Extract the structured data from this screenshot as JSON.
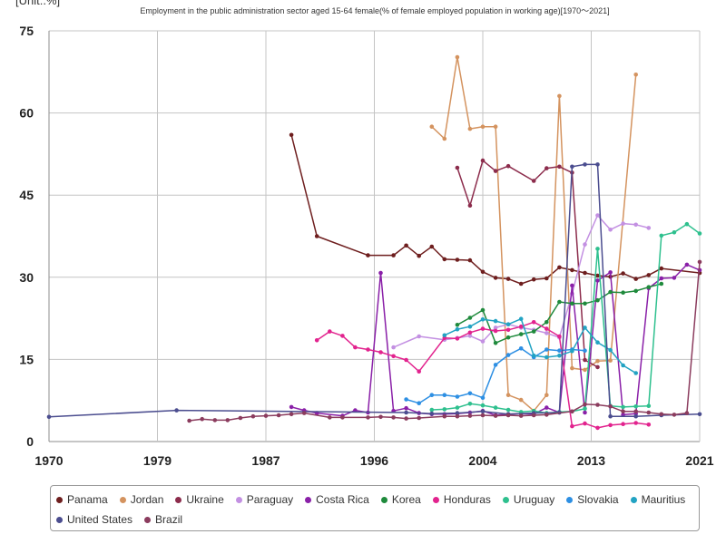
{
  "chart_data": {
    "type": "line",
    "title": "Employment in the public administration sector aged 15-64 female(% of female employed population in working age)[1970～2021]",
    "unit_label": "[Unit:.%]",
    "xlim": [
      1970,
      2021
    ],
    "ylim": [
      0,
      75
    ],
    "x_ticks": [
      "1970",
      "1979",
      "1987",
      "1996",
      "2004",
      "2013",
      "2021"
    ],
    "y_ticks": [
      "0",
      "15",
      "30",
      "45",
      "60",
      "75"
    ],
    "grid": true,
    "legend_position": "bottom",
    "series": [
      {
        "name": "Panama",
        "color": "#6e1e1e",
        "x": [
          1989,
          1991,
          1995,
          1997,
          1998,
          1999,
          2000,
          2001,
          2002,
          2003,
          2004,
          2005,
          2006,
          2007,
          2008,
          2009,
          2010,
          2011,
          2012,
          2013,
          2014,
          2015,
          2016,
          2017,
          2018,
          2021
        ],
        "y": [
          56.0,
          37.5,
          34.0,
          34.0,
          35.8,
          33.9,
          35.6,
          33.3,
          33.2,
          33.1,
          31.0,
          29.9,
          29.7,
          28.8,
          29.6,
          29.8,
          31.8,
          31.3,
          30.8,
          30.3,
          30.1,
          30.7,
          29.7,
          30.4,
          31.6,
          30.8
        ]
      },
      {
        "name": "Jordan",
        "color": "#d4935f",
        "x": [
          2000,
          2001,
          2002,
          2003,
          2004,
          2005,
          2006,
          2007,
          2008,
          2009,
          2010,
          2011,
          2012,
          2013,
          2014,
          2016
        ],
        "y": [
          57.5,
          55.3,
          70.2,
          57.1,
          57.5,
          57.5,
          8.5,
          7.6,
          5.6,
          8.5,
          63.1,
          13.4,
          13.1,
          14.7,
          14.8,
          67.0
        ]
      },
      {
        "name": "Ukraine",
        "color": "#8c2c4c",
        "x": [
          2002,
          2003,
          2004,
          2005,
          2006,
          2008,
          2009,
          2010,
          2011,
          2012,
          2013
        ],
        "y": [
          50.0,
          43.1,
          51.3,
          49.4,
          50.3,
          47.6,
          49.9,
          50.2,
          49.1,
          14.9,
          13.6
        ]
      },
      {
        "name": "Paraguay",
        "color": "#c390e2",
        "x": [
          1997,
          1999,
          2001,
          2002,
          2003,
          2004,
          2005,
          2006,
          2007,
          2008,
          2009,
          2010,
          2011,
          2012,
          2013,
          2014,
          2015,
          2016,
          2017
        ],
        "y": [
          17.2,
          19.2,
          18.6,
          18.9,
          19.3,
          18.3,
          20.8,
          21.4,
          20.8,
          20.4,
          19.8,
          19.0,
          27.0,
          36.0,
          41.3,
          38.7,
          39.8,
          39.6,
          39.0
        ]
      },
      {
        "name": "Costa Rica",
        "color": "#8a20a8",
        "x": [
          1989,
          1990,
          1991,
          1993,
          1994,
          1995,
          1996,
          1997,
          1998,
          1999,
          2000,
          2001,
          2002,
          2003,
          2004,
          2005,
          2006,
          2007,
          2008,
          2009,
          2010,
          2011,
          2012,
          2013,
          2014,
          2015,
          2016,
          2017,
          2018,
          2019,
          2020,
          2021
        ],
        "y": [
          6.3,
          5.7,
          5.2,
          4.7,
          5.7,
          5.3,
          30.8,
          5.6,
          6.1,
          5.2,
          5.0,
          5.0,
          5.1,
          5.3,
          5.6,
          4.8,
          5.0,
          5.1,
          5.0,
          6.2,
          5.3,
          28.5,
          5.3,
          29.4,
          30.9,
          4.9,
          5.1,
          28.0,
          29.8,
          29.9,
          32.3,
          31.3
        ]
      },
      {
        "name": "Korea",
        "color": "#1f8a3c",
        "x": [
          2002,
          2003,
          2004,
          2005,
          2006,
          2007,
          2008,
          2009,
          2010,
          2011,
          2012,
          2013,
          2014,
          2015,
          2016,
          2017,
          2018
        ],
        "y": [
          21.3,
          22.6,
          24.0,
          18.0,
          19.0,
          19.6,
          20.1,
          21.8,
          25.5,
          25.2,
          25.2,
          25.8,
          27.3,
          27.2,
          27.5,
          28.2,
          28.8
        ]
      },
      {
        "name": "Honduras",
        "color": "#e2238e",
        "x": [
          1991,
          1992,
          1993,
          1994,
          1995,
          1996,
          1997,
          1998,
          1999,
          2001,
          2002,
          2003,
          2004,
          2005,
          2006,
          2007,
          2008,
          2009,
          2010,
          2011,
          2012,
          2013,
          2014,
          2015,
          2016,
          2017
        ],
        "y": [
          18.5,
          20.1,
          19.3,
          17.2,
          16.8,
          16.3,
          15.6,
          14.9,
          12.8,
          18.9,
          18.8,
          19.9,
          20.6,
          20.2,
          20.4,
          21.0,
          21.8,
          20.6,
          19.2,
          2.8,
          3.3,
          2.5,
          3.0,
          3.2,
          3.4,
          3.1
        ]
      },
      {
        "name": "Uruguay",
        "color": "#2ec08e",
        "x": [
          2000,
          2001,
          2002,
          2003,
          2004,
          2005,
          2006,
          2007,
          2008,
          2009,
          2010,
          2011,
          2012,
          2013,
          2014,
          2015,
          2016,
          2017,
          2018,
          2019,
          2020,
          2021
        ],
        "y": [
          5.8,
          5.9,
          6.2,
          6.9,
          6.6,
          6.2,
          5.8,
          5.4,
          5.6,
          5.2,
          5.4,
          5.5,
          6.0,
          35.2,
          6.5,
          6.3,
          6.4,
          6.5,
          37.6,
          38.2,
          39.7,
          38.0
        ]
      },
      {
        "name": "Slovakia",
        "color": "#2d8fe3",
        "x": [
          1998,
          1999,
          2000,
          2001,
          2002,
          2003,
          2004,
          2005,
          2006,
          2007,
          2008,
          2009,
          2010,
          2011,
          2012
        ],
        "y": [
          7.7,
          7.0,
          8.5,
          8.5,
          8.2,
          8.8,
          8.0,
          14.0,
          15.8,
          17.0,
          15.4,
          16.8,
          16.6,
          16.8,
          16.6
        ]
      },
      {
        "name": "Mauritius",
        "color": "#22a3c3",
        "x": [
          2001,
          2002,
          2003,
          2004,
          2005,
          2006,
          2007,
          2008,
          2009,
          2010,
          2011,
          2012,
          2013,
          2014,
          2015,
          2016
        ],
        "y": [
          19.4,
          20.5,
          21.0,
          22.3,
          22.0,
          21.4,
          22.4,
          15.7,
          15.4,
          15.7,
          16.5,
          20.8,
          18.1,
          16.7,
          13.9,
          12.5
        ]
      },
      {
        "name": "United States",
        "color": "#4b4d8f",
        "x": [
          1970,
          1980,
          1998,
          2000,
          2002,
          2004,
          2006,
          2008,
          2010,
          2011,
          2012,
          2013,
          2014,
          2016,
          2018,
          2021
        ],
        "y": [
          4.5,
          5.7,
          5.3,
          5.1,
          5.2,
          5.5,
          5.0,
          5.2,
          5.3,
          50.2,
          50.6,
          50.6,
          4.6,
          4.6,
          4.8,
          5.0
        ]
      },
      {
        "name": "Brazil",
        "color": "#8b3c5e",
        "x": [
          1981,
          1982,
          1983,
          1984,
          1985,
          1986,
          1987,
          1988,
          1989,
          1990,
          1992,
          1993,
          1995,
          1996,
          1997,
          1998,
          1999,
          2001,
          2002,
          2003,
          2004,
          2005,
          2006,
          2007,
          2008,
          2009,
          2011,
          2012,
          2013,
          2014,
          2015,
          2016,
          2017,
          2018,
          2019,
          2020,
          2021
        ],
        "y": [
          3.8,
          4.1,
          3.9,
          3.9,
          4.3,
          4.6,
          4.7,
          4.8,
          5.0,
          5.2,
          4.4,
          4.4,
          4.4,
          4.5,
          4.4,
          4.2,
          4.3,
          4.6,
          4.6,
          4.7,
          4.8,
          4.7,
          4.8,
          4.7,
          4.8,
          4.9,
          5.5,
          6.8,
          6.7,
          6.4,
          5.5,
          5.5,
          5.3,
          5.0,
          4.9,
          5.2,
          32.8
        ]
      }
    ]
  }
}
